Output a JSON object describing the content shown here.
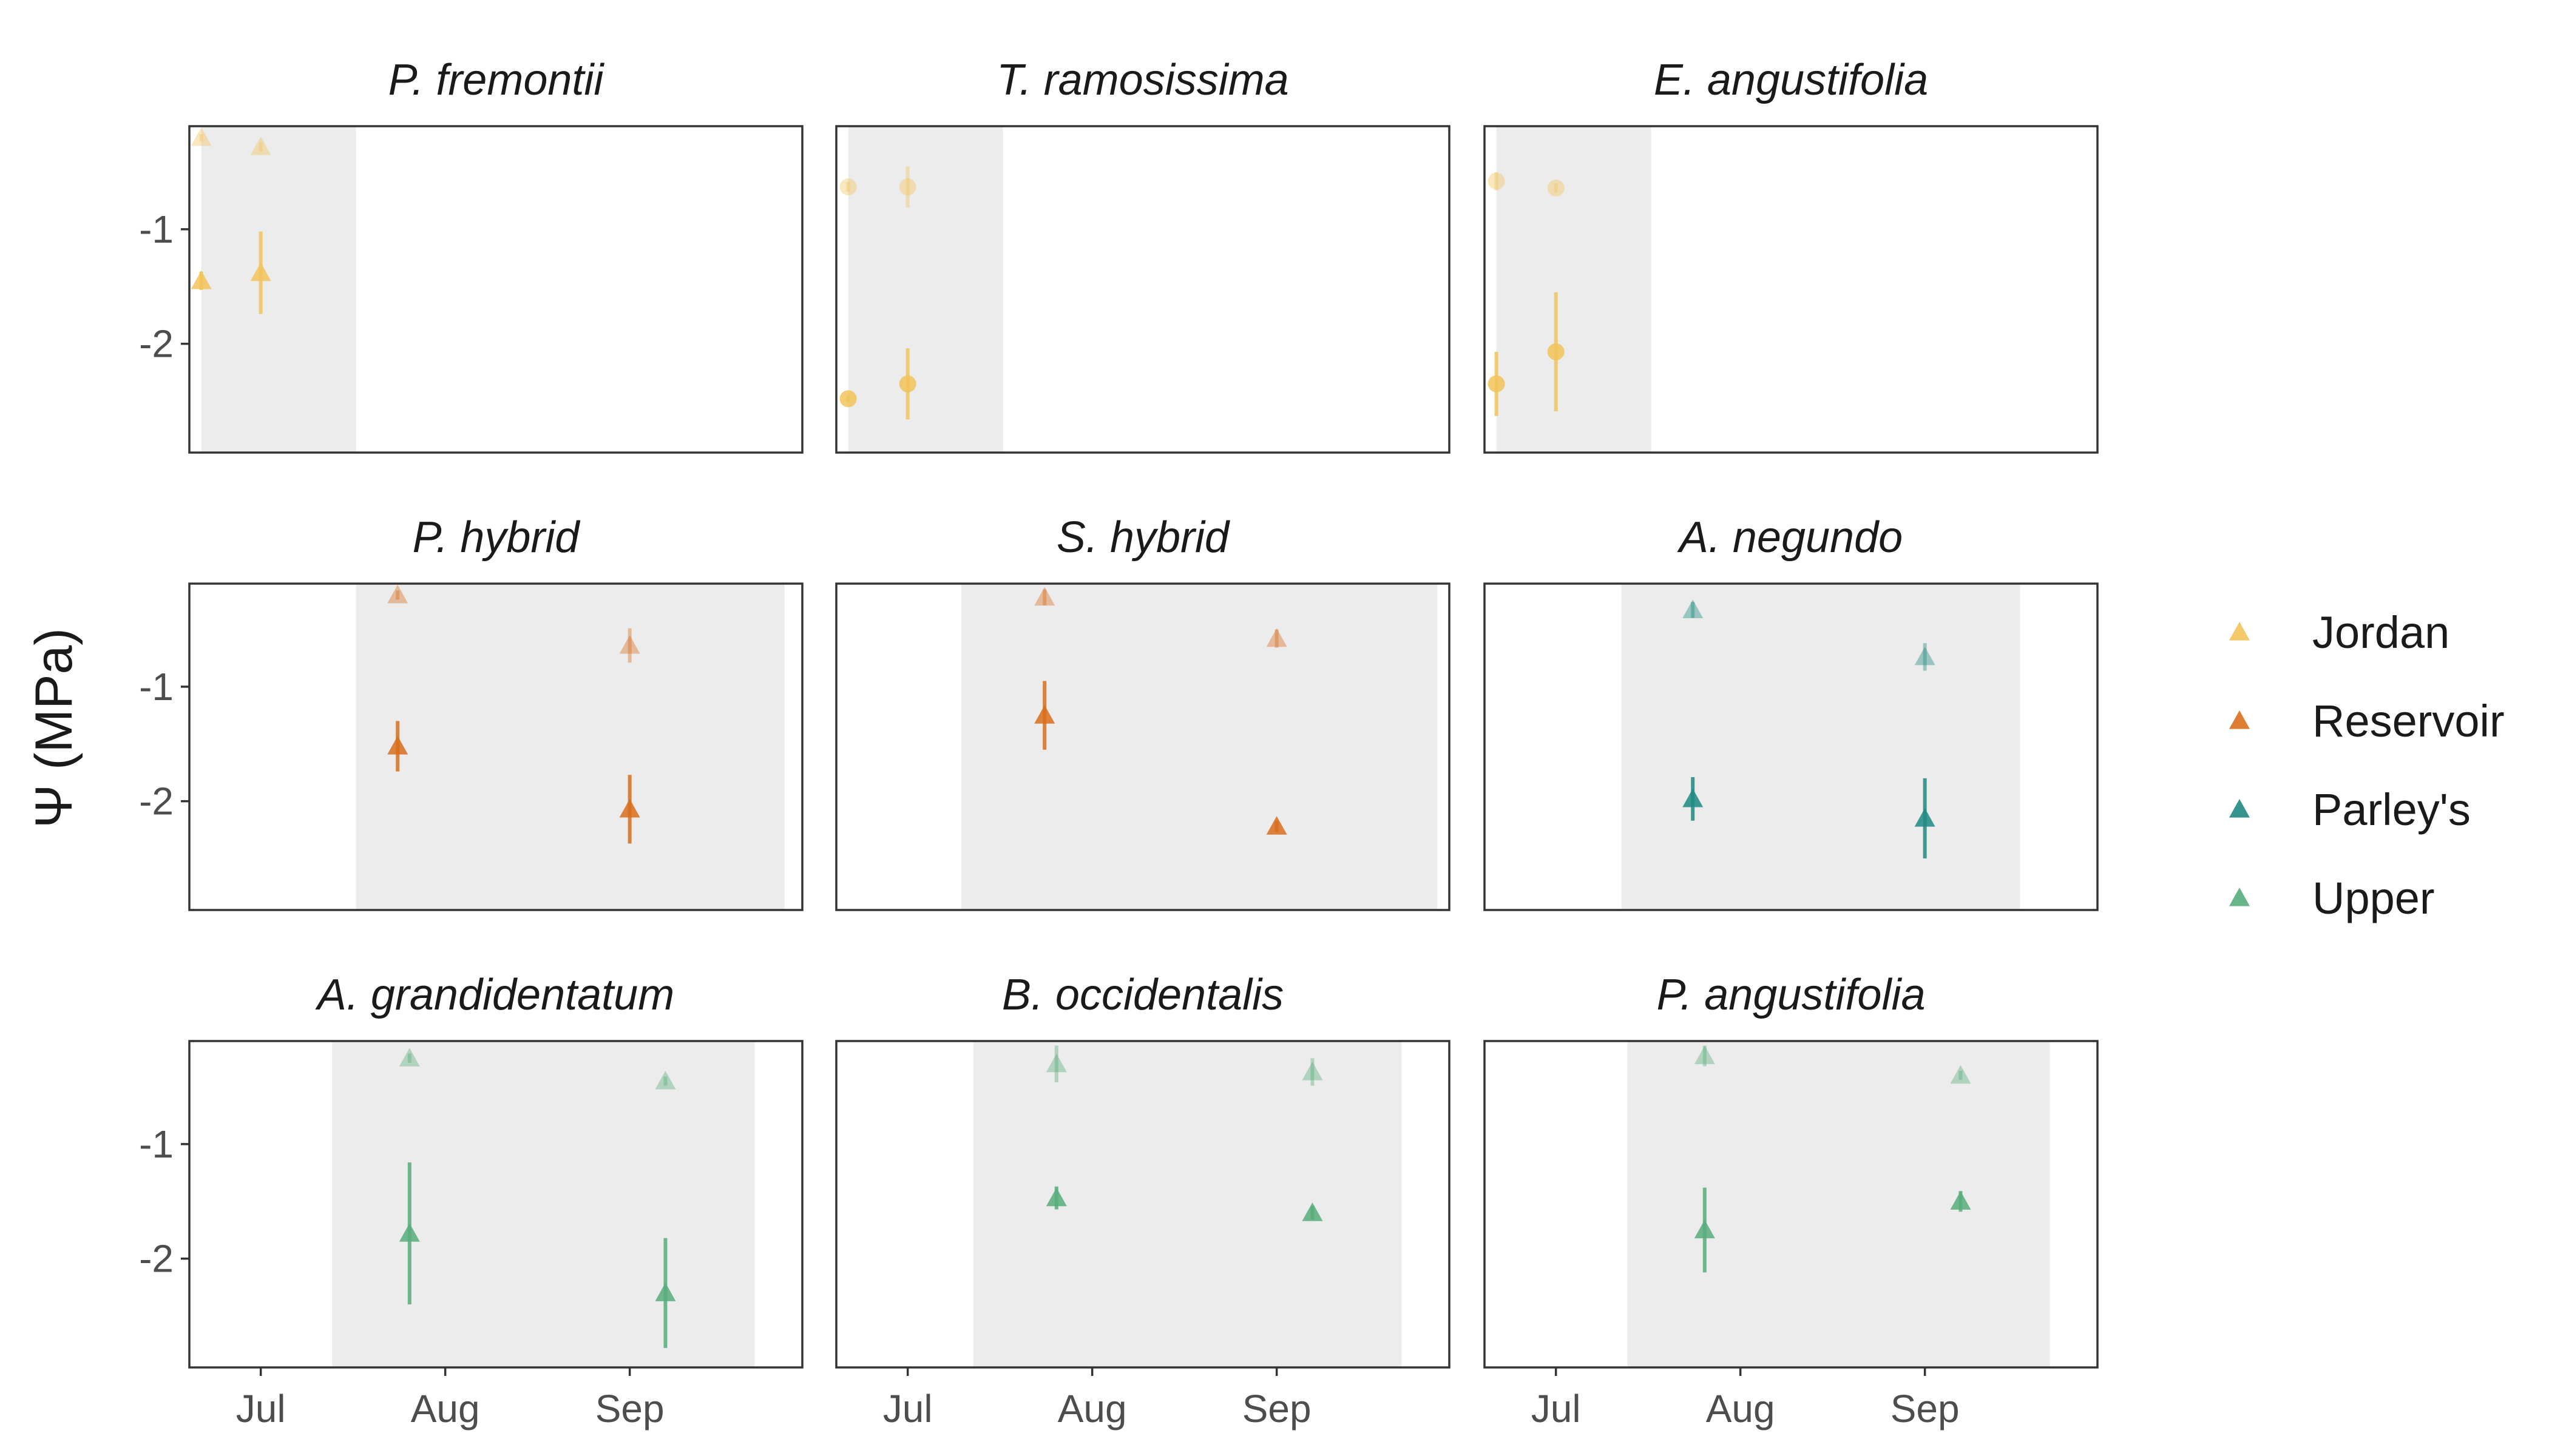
{
  "chart_data": {
    "type": "scatter",
    "ylabel": "Ψ (MPa)",
    "x_ticks": [
      {
        "label": "Jul",
        "value": "2019-07-01"
      },
      {
        "label": "Aug",
        "value": "2019-08-01"
      },
      {
        "label": "Sep",
        "value": "2019-09-01"
      }
    ],
    "x_range": [
      "2019-06-19",
      "2019-09-30"
    ],
    "y_ticks": [
      -1,
      -2
    ],
    "y_range": [
      -2.95,
      -0.1
    ],
    "grid": false,
    "legend": {
      "placement": "right",
      "entries": [
        {
          "name": "Jordan",
          "color": "#F2C35A"
        },
        {
          "name": "Reservoir",
          "color": "#D86F1D"
        },
        {
          "name": "Parley's",
          "color": "#1F8A82"
        },
        {
          "name": "Upper",
          "color": "#58AD7A"
        }
      ]
    },
    "panels": [
      {
        "title": "P. fremontii",
        "site": "Jordan",
        "marker": "triangle",
        "season": [
          "2019-06-21",
          "2019-07-17"
        ],
        "points": [
          {
            "x": "2019-06-21",
            "y": -0.2,
            "err": 0.03,
            "faded": true
          },
          {
            "x": "2019-06-21",
            "y": -1.45,
            "err": 0.08,
            "faded": false
          },
          {
            "x": "2019-07-01",
            "y": -0.28,
            "err": 0.04,
            "faded": true
          },
          {
            "x": "2019-07-01",
            "y": -1.38,
            "err": 0.36,
            "faded": false
          }
        ]
      },
      {
        "title": "T. ramosissima",
        "site": "Jordan",
        "marker": "circle",
        "season": [
          "2019-06-21",
          "2019-07-17"
        ],
        "points": [
          {
            "x": "2019-06-21",
            "y": -0.63,
            "err": 0.04,
            "faded": true
          },
          {
            "x": "2019-06-21",
            "y": -2.48,
            "err": 0.03,
            "faded": false
          },
          {
            "x": "2019-07-01",
            "y": -0.63,
            "err": 0.18,
            "faded": true
          },
          {
            "x": "2019-07-01",
            "y": -2.35,
            "err": 0.31,
            "faded": false
          }
        ]
      },
      {
        "title": "E. angustifolia",
        "site": "Jordan",
        "marker": "circle",
        "season": [
          "2019-06-21",
          "2019-07-17"
        ],
        "points": [
          {
            "x": "2019-06-21",
            "y": -0.58,
            "err": 0.08,
            "faded": true
          },
          {
            "x": "2019-06-21",
            "y": -2.35,
            "err": 0.28,
            "faded": false
          },
          {
            "x": "2019-07-01",
            "y": -0.64,
            "err": 0.04,
            "faded": true
          },
          {
            "x": "2019-07-01",
            "y": -2.07,
            "err": 0.52,
            "faded": false
          }
        ]
      },
      {
        "title": "P. hybrid",
        "site": "Reservoir",
        "marker": "triangle",
        "season": [
          "2019-07-17",
          "2019-09-27"
        ],
        "points": [
          {
            "x": "2019-07-24",
            "y": -0.2,
            "err": 0.04,
            "faded": true
          },
          {
            "x": "2019-07-24",
            "y": -1.52,
            "err": 0.22,
            "faded": false
          },
          {
            "x": "2019-09-01",
            "y": -0.64,
            "err": 0.15,
            "faded": true
          },
          {
            "x": "2019-09-01",
            "y": -2.07,
            "err": 0.3,
            "faded": false
          }
        ]
      },
      {
        "title": "S. hybrid",
        "site": "Reservoir",
        "marker": "triangle",
        "season": [
          "2019-07-10",
          "2019-09-28"
        ],
        "points": [
          {
            "x": "2019-07-24",
            "y": -0.22,
            "err": 0.07,
            "faded": true
          },
          {
            "x": "2019-07-24",
            "y": -1.25,
            "err": 0.3,
            "faded": false
          },
          {
            "x": "2019-09-01",
            "y": -0.58,
            "err": 0.08,
            "faded": true
          },
          {
            "x": "2019-09-01",
            "y": -2.22,
            "err": 0.05,
            "faded": false
          }
        ]
      },
      {
        "title": "A. negundo",
        "site": "Parley's",
        "marker": "triangle",
        "season": [
          "2019-07-12",
          "2019-09-17"
        ],
        "points": [
          {
            "x": "2019-07-24",
            "y": -0.33,
            "err": 0.07,
            "faded": true
          },
          {
            "x": "2019-07-24",
            "y": -1.98,
            "err": 0.19,
            "faded": false
          },
          {
            "x": "2019-09-01",
            "y": -0.74,
            "err": 0.12,
            "faded": true
          },
          {
            "x": "2019-09-01",
            "y": -2.15,
            "err": 0.35,
            "faded": false
          }
        ]
      },
      {
        "title": "A. grandidentatum",
        "site": "Upper",
        "marker": "triangle",
        "season": [
          "2019-07-13",
          "2019-09-22"
        ],
        "points": [
          {
            "x": "2019-07-26",
            "y": -0.25,
            "err": 0.04,
            "faded": true
          },
          {
            "x": "2019-07-26",
            "y": -1.78,
            "err": 0.62,
            "faded": false
          },
          {
            "x": "2019-09-07",
            "y": -0.45,
            "err": 0.04,
            "faded": true
          },
          {
            "x": "2019-09-07",
            "y": -2.3,
            "err": 0.48,
            "faded": false
          }
        ]
      },
      {
        "title": "B. occidentalis",
        "site": "Upper",
        "marker": "triangle",
        "season": [
          "2019-07-12",
          "2019-09-22"
        ],
        "points": [
          {
            "x": "2019-07-26",
            "y": -0.3,
            "err": 0.16,
            "faded": true
          },
          {
            "x": "2019-07-26",
            "y": -1.47,
            "err": 0.1,
            "faded": false
          },
          {
            "x": "2019-09-07",
            "y": -0.37,
            "err": 0.12,
            "faded": true
          },
          {
            "x": "2019-09-07",
            "y": -1.6,
            "err": 0.06,
            "faded": false
          }
        ]
      },
      {
        "title": "P. angustifolia",
        "site": "Upper",
        "marker": "triangle",
        "season": [
          "2019-07-13",
          "2019-09-22"
        ],
        "points": [
          {
            "x": "2019-07-26",
            "y": -0.23,
            "err": 0.09,
            "faded": true
          },
          {
            "x": "2019-07-26",
            "y": -1.75,
            "err": 0.37,
            "faded": false
          },
          {
            "x": "2019-09-07",
            "y": -0.4,
            "err": 0.04,
            "faded": true
          },
          {
            "x": "2019-09-07",
            "y": -1.5,
            "err": 0.09,
            "faded": false
          }
        ]
      }
    ]
  }
}
